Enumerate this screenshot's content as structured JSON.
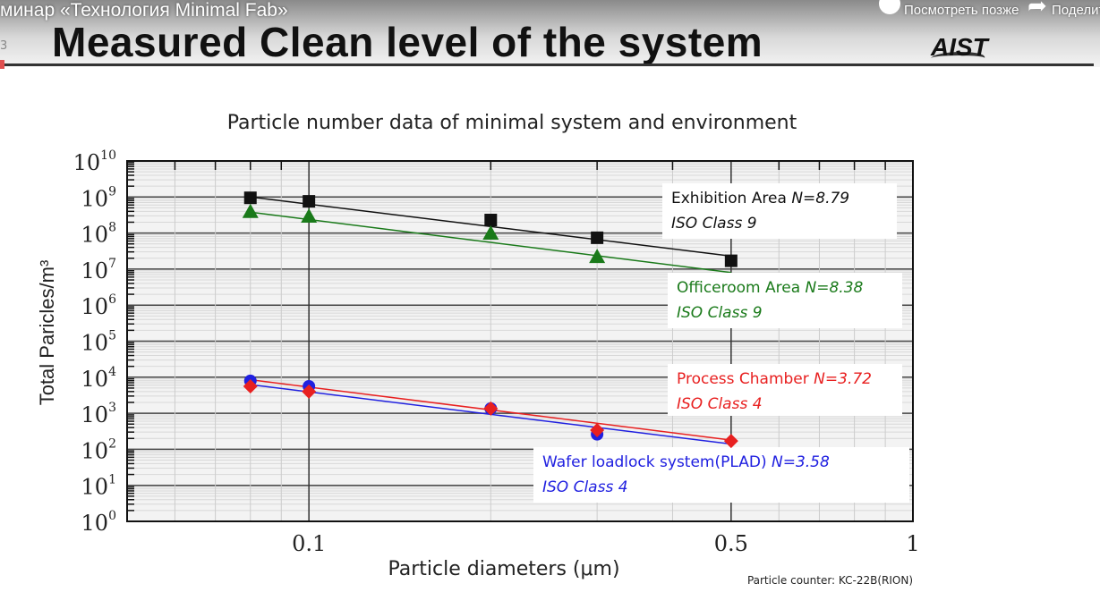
{
  "video_overlay": {
    "title": "минар «Технология Minimal Fab»",
    "watch_later": "Посмотреть позже",
    "share": "Поделиться",
    "side_number": "3"
  },
  "slide": {
    "title": "Measured Clean level of the system",
    "logo": "AIST",
    "footnote": "Particle counter: KC-22B(RION)"
  },
  "chart_data": {
    "type": "line",
    "title": "Particle number data of minimal system and environment",
    "xlabel": "Particle diameters (μm)",
    "ylabel": "Total Paricles/m³",
    "xscale": "log",
    "yscale": "log",
    "xlim": [
      0.05,
      1
    ],
    "ylim": [
      1,
      10000000000
    ],
    "x_ticks": [
      {
        "v": 0.1,
        "label": "0.1"
      },
      {
        "v": 0.5,
        "label": "0.5"
      },
      {
        "v": 1,
        "label": "1"
      }
    ],
    "y_ticks": [
      {
        "exp": 0,
        "base": "10",
        "sup": "0"
      },
      {
        "exp": 1,
        "base": "10",
        "sup": "1"
      },
      {
        "exp": 2,
        "base": "10",
        "sup": "2"
      },
      {
        "exp": 3,
        "base": "10",
        "sup": "3"
      },
      {
        "exp": 4,
        "base": "10",
        "sup": "4"
      },
      {
        "exp": 5,
        "base": "10",
        "sup": "5"
      },
      {
        "exp": 6,
        "base": "10",
        "sup": "6"
      },
      {
        "exp": 7,
        "base": "10",
        "sup": "7"
      },
      {
        "exp": 8,
        "base": "10",
        "sup": "8"
      },
      {
        "exp": 9,
        "base": "10",
        "sup": "9"
      },
      {
        "exp": 10,
        "base": "10",
        "sup": "10"
      }
    ],
    "grid": true,
    "series": [
      {
        "name": "Exhibition Area",
        "n_label": "N=8.79",
        "class_label": "ISO Class 9",
        "color": "#111111",
        "marker": "square",
        "x": [
          0.08,
          0.1,
          0.2,
          0.3,
          0.5
        ],
        "y": [
          950000000,
          760000000,
          230000000,
          74000000,
          17000000
        ],
        "fit": [
          [
            0.08,
            1000000000
          ],
          [
            0.5,
            23000000
          ]
        ]
      },
      {
        "name": "Officeroom Area",
        "n_label": "N=8.38",
        "class_label": "ISO Class 9",
        "color": "#1a7a1a",
        "marker": "triangle",
        "x": [
          0.08,
          0.1,
          0.2,
          0.3,
          0.5
        ],
        "y": [
          390000000,
          290000000,
          98000000,
          22000000,
          null
        ],
        "fit": [
          [
            0.08,
            380000000
          ],
          [
            0.5,
            8000000
          ]
        ]
      },
      {
        "name": "Process Chamber",
        "n_label": "N=3.72",
        "class_label": "ISO Class 4",
        "color": "#e82020",
        "marker": "diamond",
        "x": [
          0.08,
          0.1,
          0.2,
          0.3,
          0.5
        ],
        "y": [
          5600,
          4000,
          1350,
          340,
          170
        ],
        "fit": [
          [
            0.08,
            8500
          ],
          [
            0.5,
            180
          ]
        ]
      },
      {
        "name": "Wafer loadlock system(PLAD)",
        "n_label": "N=3.58",
        "class_label": "ISO Class 4",
        "color": "#2020e0",
        "marker": "circle",
        "x": [
          0.08,
          0.1,
          0.2,
          0.3
        ],
        "y": [
          7900,
          5600,
          1350,
          260
        ],
        "fit": [
          [
            0.08,
            6200
          ],
          [
            0.5,
            140
          ]
        ]
      }
    ]
  }
}
